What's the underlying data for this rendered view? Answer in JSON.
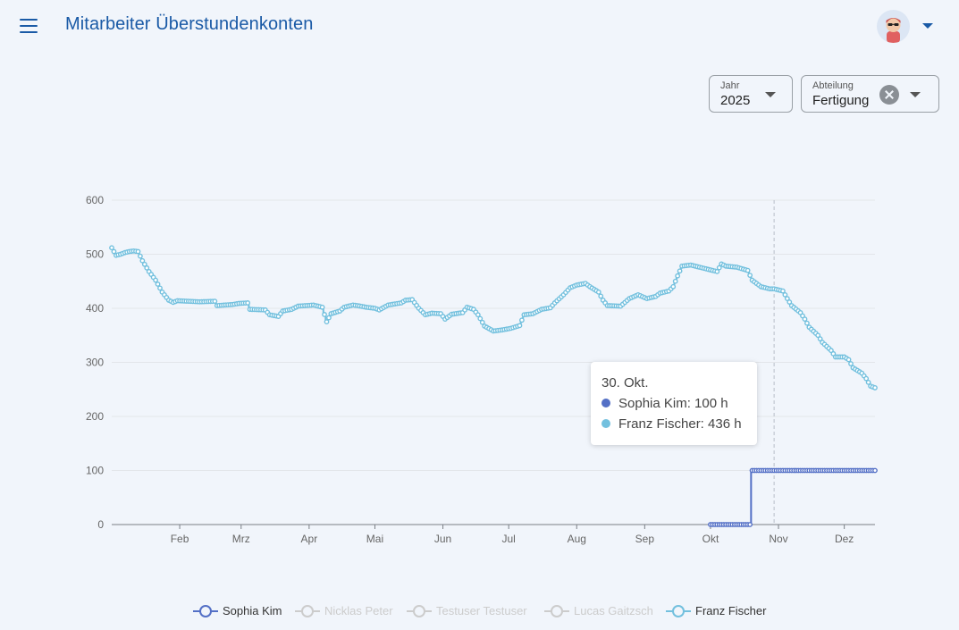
{
  "header": {
    "title": "Mitarbeiter Überstundenkonten"
  },
  "filters": {
    "year": {
      "label": "Jahr",
      "value": "2025"
    },
    "department": {
      "label": "Abteilung",
      "value": "Fertigung"
    }
  },
  "colors": {
    "accent": "#1a5aa6",
    "sophia": "#5470c6",
    "franz": "#73c0de",
    "inactive": "#cccccc"
  },
  "tooltip": {
    "title": "30. Okt.",
    "rows": [
      {
        "text": "Sophia Kim: 100 h"
      },
      {
        "text": "Franz Fischer: 436 h"
      }
    ]
  },
  "chart_data": {
    "type": "line",
    "step": true,
    "y_ticks": [
      "0",
      "100",
      "200",
      "300",
      "400",
      "500",
      "600"
    ],
    "ylim": [
      0,
      600
    ],
    "x_ticks": [
      "Feb",
      "Mrz",
      "Apr",
      "Mai",
      "Jun",
      "Jul",
      "Aug",
      "Sep",
      "Okt",
      "Nov",
      "Dez"
    ],
    "x_range_days": [
      0,
      348
    ],
    "x_tick_days": [
      31,
      59,
      90,
      120,
      151,
      181,
      212,
      243,
      273,
      304,
      334
    ],
    "marker_day": 302,
    "grid": true,
    "legend_position": "bottom",
    "series": [
      {
        "name": "Sophia Kim",
        "active": true,
        "points": [
          [
            273,
            0
          ],
          [
            291,
            0
          ],
          [
            292,
            100
          ],
          [
            348,
            100
          ]
        ]
      },
      {
        "name": "Nicklas Peter",
        "active": false,
        "points": []
      },
      {
        "name": "Testuser Testuser",
        "active": false,
        "points": []
      },
      {
        "name": "Lucas Gaitzsch",
        "active": false,
        "points": []
      },
      {
        "name": "Franz Fischer",
        "active": true,
        "points": [
          [
            0,
            512
          ],
          [
            2,
            498
          ],
          [
            4,
            500
          ],
          [
            6,
            503
          ],
          [
            8,
            505
          ],
          [
            10,
            506
          ],
          [
            12,
            505
          ],
          [
            14,
            488
          ],
          [
            17,
            468
          ],
          [
            20,
            452
          ],
          [
            23,
            430
          ],
          [
            26,
            415
          ],
          [
            28,
            411
          ],
          [
            30,
            414
          ],
          [
            40,
            412
          ],
          [
            47,
            413
          ],
          [
            48,
            405
          ],
          [
            55,
            407
          ],
          [
            58,
            409
          ],
          [
            62,
            410
          ],
          [
            63,
            398
          ],
          [
            70,
            397
          ],
          [
            72,
            388
          ],
          [
            76,
            385
          ],
          [
            78,
            395
          ],
          [
            82,
            398
          ],
          [
            85,
            404
          ],
          [
            92,
            406
          ],
          [
            96,
            402
          ],
          [
            98,
            375
          ],
          [
            100,
            390
          ],
          [
            104,
            395
          ],
          [
            106,
            402
          ],
          [
            110,
            406
          ],
          [
            112,
            405
          ],
          [
            116,
            402
          ],
          [
            120,
            400
          ],
          [
            122,
            397
          ],
          [
            126,
            406
          ],
          [
            132,
            410
          ],
          [
            134,
            415
          ],
          [
            137,
            416
          ],
          [
            140,
            400
          ],
          [
            143,
            388
          ],
          [
            146,
            391
          ],
          [
            150,
            390
          ],
          [
            152,
            380
          ],
          [
            155,
            389
          ],
          [
            160,
            392
          ],
          [
            162,
            402
          ],
          [
            165,
            398
          ],
          [
            167,
            388
          ],
          [
            170,
            367
          ],
          [
            174,
            358
          ],
          [
            178,
            360
          ],
          [
            182,
            363
          ],
          [
            186,
            368
          ],
          [
            188,
            388
          ],
          [
            192,
            390
          ],
          [
            196,
            398
          ],
          [
            200,
            401
          ],
          [
            202,
            410
          ],
          [
            206,
            425
          ],
          [
            209,
            438
          ],
          [
            212,
            443
          ],
          [
            216,
            446
          ],
          [
            218,
            440
          ],
          [
            222,
            430
          ],
          [
            224,
            415
          ],
          [
            226,
            405
          ],
          [
            232,
            404
          ],
          [
            236,
            418
          ],
          [
            240,
            425
          ],
          [
            244,
            418
          ],
          [
            248,
            422
          ],
          [
            250,
            428
          ],
          [
            254,
            432
          ],
          [
            256,
            440
          ],
          [
            258,
            460
          ],
          [
            260,
            478
          ],
          [
            264,
            480
          ],
          [
            268,
            476
          ],
          [
            272,
            472
          ],
          [
            276,
            468
          ],
          [
            278,
            482
          ],
          [
            280,
            478
          ],
          [
            285,
            476
          ],
          [
            290,
            470
          ],
          [
            292,
            452
          ],
          [
            296,
            440
          ],
          [
            300,
            436
          ],
          [
            302,
            436
          ],
          [
            306,
            432
          ],
          [
            308,
            418
          ],
          [
            310,
            405
          ],
          [
            314,
            392
          ],
          [
            316,
            380
          ],
          [
            318,
            365
          ],
          [
            322,
            350
          ],
          [
            324,
            337
          ],
          [
            328,
            322
          ],
          [
            330,
            310
          ],
          [
            334,
            310
          ],
          [
            336,
            305
          ],
          [
            338,
            290
          ],
          [
            340,
            285
          ],
          [
            342,
            280
          ],
          [
            344,
            270
          ],
          [
            346,
            256
          ],
          [
            348,
            253
          ]
        ]
      }
    ]
  }
}
